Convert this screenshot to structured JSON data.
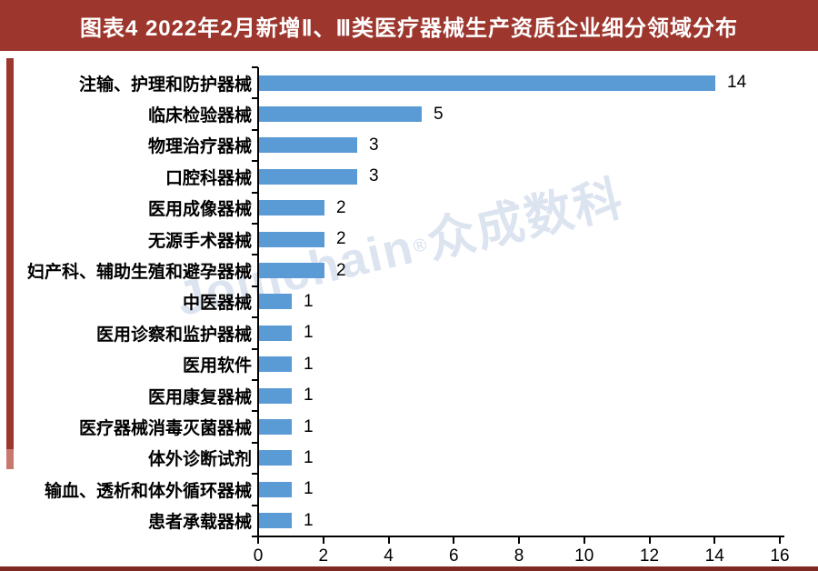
{
  "header": {
    "title": "图表4 2022年2月新增Ⅱ、Ⅲ类医疗器械生产资质企业细分领域分布"
  },
  "watermark": {
    "brand": "Joinchain",
    "reg": "®",
    "cn": "众成数科"
  },
  "colors": {
    "banner_red": "#9D372E",
    "accent_red_light": "#C9786E",
    "bar_blue": "#5B9BD5",
    "watermark_blue": "#DCE4F0",
    "axis_black": "#000000"
  },
  "chart_data": {
    "type": "bar",
    "orientation": "horizontal",
    "title": "图表4 2022年2月新增Ⅱ、Ⅲ类医疗器械生产资质企业细分领域分布",
    "categories": [
      "注输、护理和防护器械",
      "临床检验器械",
      "物理治疗器械",
      "口腔科器械",
      "医用成像器械",
      "无源手术器械",
      "妇产科、辅助生殖和避孕器械",
      "中医器械",
      "医用诊察和监护器械",
      "医用软件",
      "医用康复器械",
      "医疗器械消毒灭菌器械",
      "体外诊断试剂",
      "输血、透析和体外循环器械",
      "患者承载器械"
    ],
    "values": [
      14,
      5,
      3,
      3,
      2,
      2,
      2,
      1,
      1,
      1,
      1,
      1,
      1,
      1,
      1
    ],
    "xlabel": "",
    "ylabel": "",
    "xlim": [
      0,
      16
    ],
    "x_ticks": [
      0,
      2,
      4,
      6,
      8,
      10,
      12,
      14,
      16
    ],
    "grid": false,
    "legend": false,
    "value_labels": true,
    "bar_color": "#5B9BD5"
  }
}
